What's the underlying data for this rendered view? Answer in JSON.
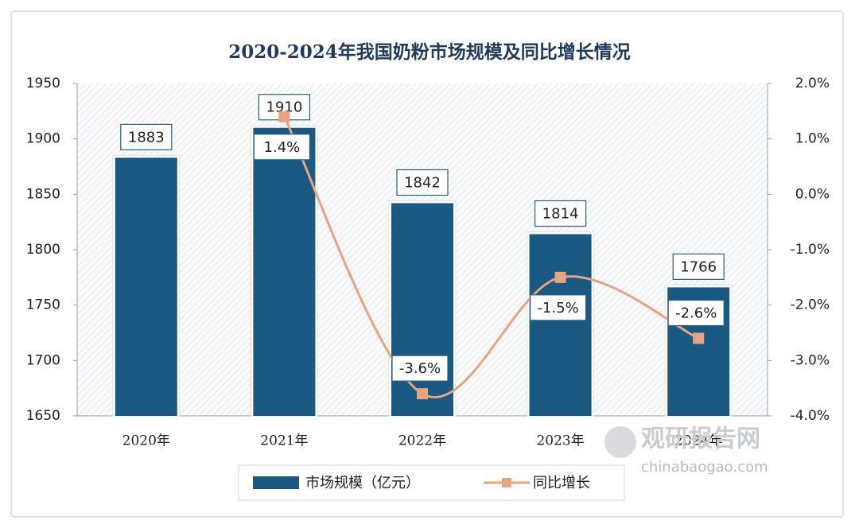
{
  "chart_data": {
    "type": "bar",
    "title": "2020-2024年我国奶粉市场规模及同比增长情况",
    "categories": [
      "2020年",
      "2021年",
      "2022年",
      "2023年",
      "2024年"
    ],
    "series": [
      {
        "name": "市场规模（亿元）",
        "type": "bar",
        "color": "#1a5a82",
        "values": [
          1883,
          1910,
          1842,
          1814,
          1766
        ]
      },
      {
        "name": "同比增长",
        "type": "line",
        "axis": "y2",
        "color": "#e9a47f",
        "values": [
          null,
          1.4,
          -3.6,
          -1.5,
          -2.6
        ],
        "value_labels": [
          null,
          "1.4%",
          "-3.6%",
          "-1.5%",
          "-2.6%"
        ]
      }
    ],
    "ylim": [
      1650,
      1950
    ],
    "yticks": [
      1650,
      1700,
      1750,
      1800,
      1850,
      1900,
      1950
    ],
    "y2lim": [
      -4,
      2
    ],
    "y2ticks": [
      {
        "value": -4,
        "label": "-4.0%"
      },
      {
        "value": -3,
        "label": "-3.0%"
      },
      {
        "value": -2,
        "label": "-2.0%"
      },
      {
        "value": -1,
        "label": "-1.0%"
      },
      {
        "value": 0,
        "label": "0.0%"
      },
      {
        "value": 1,
        "label": "1.0%"
      },
      {
        "value": 2,
        "label": "2.0%"
      }
    ],
    "legend": "bottom",
    "watermark": {
      "name": "观研报告网",
      "url": "chinabaogao.com"
    }
  }
}
